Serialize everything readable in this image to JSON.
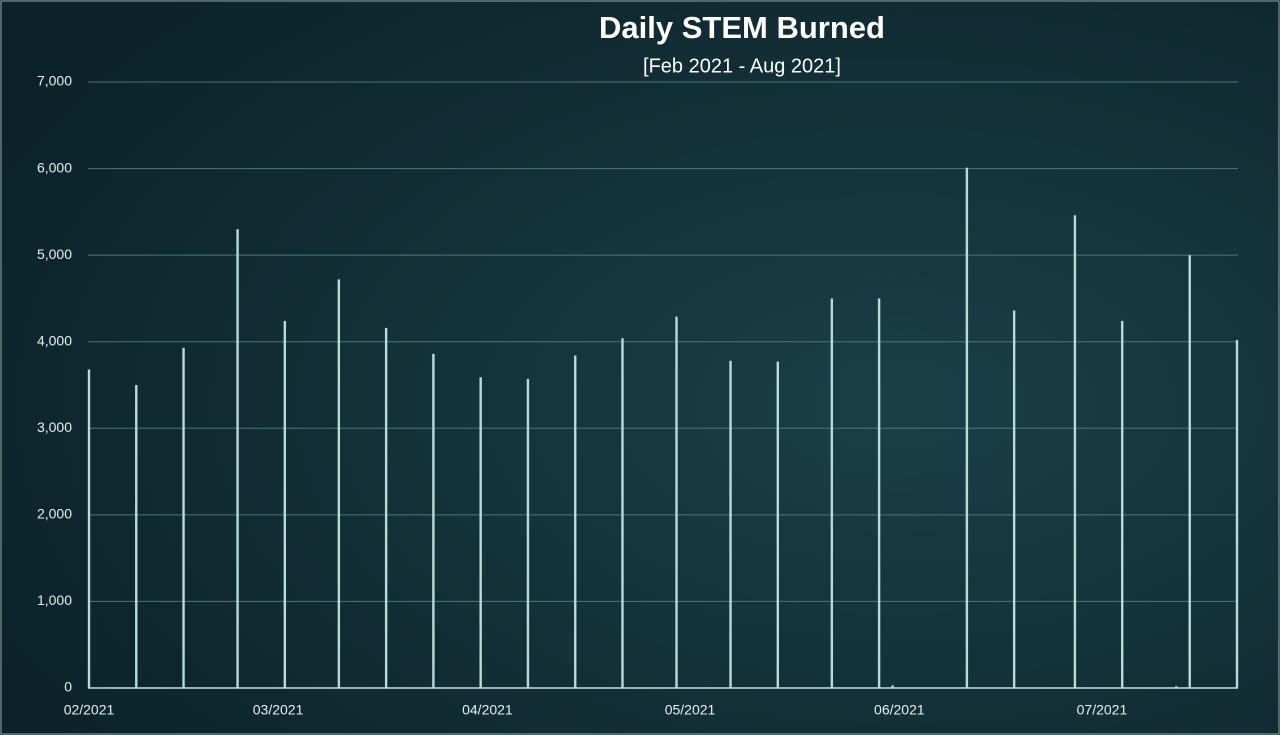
{
  "chart_data": {
    "type": "bar",
    "title": "Daily STEM Burned",
    "subtitle": "[Feb 2021 - Aug 2021]",
    "categories": [
      "02/2021",
      null,
      null,
      null,
      null,
      null,
      null,
      null,
      null,
      null,
      null,
      null,
      null,
      null,
      null,
      null,
      null,
      null,
      null,
      null,
      null,
      null,
      null,
      null,
      null,
      null,
      null,
      null,
      "03/2021",
      null,
      null,
      null,
      null,
      null,
      null,
      null,
      null,
      null,
      null,
      null,
      null,
      null,
      null,
      null,
      null,
      null,
      null,
      null,
      null,
      null,
      null,
      null,
      null,
      null,
      null,
      null,
      null,
      null,
      null,
      "04/2021",
      null,
      null,
      null,
      null,
      null,
      null,
      null,
      null,
      null,
      null,
      null,
      null,
      null,
      null,
      null,
      null,
      null,
      null,
      null,
      null,
      null,
      null,
      null,
      null,
      null,
      null,
      null,
      null,
      null,
      "05/2021",
      null,
      null,
      null,
      null,
      null,
      null,
      null,
      null,
      null,
      null,
      null,
      null,
      null,
      null,
      null,
      null,
      null,
      null,
      null,
      null,
      null,
      null,
      null,
      null,
      null,
      null,
      null,
      null,
      null,
      null,
      "06/2021",
      null,
      null,
      null,
      null,
      null,
      null,
      null,
      null,
      null,
      null,
      null,
      null,
      null,
      null,
      null,
      null,
      null,
      null,
      null,
      null,
      null,
      null,
      null,
      null,
      null,
      null,
      null,
      null,
      null,
      "07/2021",
      null,
      null,
      null,
      null,
      null,
      null,
      null,
      null,
      null,
      null,
      null,
      null,
      null,
      null,
      null,
      null,
      null,
      null,
      null,
      null
    ],
    "values": [
      3680,
      0,
      0,
      0,
      0,
      0,
      0,
      3500,
      0,
      0,
      0,
      0,
      0,
      0,
      3930,
      0,
      0,
      0,
      0,
      0,
      0,
      0,
      5300,
      0,
      0,
      0,
      0,
      0,
      0,
      4240,
      0,
      0,
      0,
      0,
      0,
      0,
      0,
      4720,
      0,
      0,
      0,
      0,
      0,
      0,
      4160,
      0,
      0,
      0,
      0,
      0,
      0,
      3860,
      0,
      0,
      0,
      0,
      0,
      0,
      3590,
      0,
      0,
      0,
      0,
      0,
      0,
      3570,
      0,
      0,
      0,
      0,
      0,
      0,
      3840,
      0,
      0,
      0,
      0,
      0,
      0,
      4040,
      0,
      0,
      0,
      0,
      0,
      0,
      0,
      4290,
      0,
      0,
      0,
      0,
      0,
      0,
      0,
      3780,
      0,
      0,
      0,
      0,
      0,
      0,
      3770,
      0,
      0,
      0,
      0,
      0,
      0,
      0,
      4500,
      0,
      0,
      0,
      0,
      0,
      0,
      4500,
      0,
      30,
      0,
      0,
      0,
      0,
      0,
      0,
      0,
      0,
      0,
      0,
      6010,
      0,
      0,
      0,
      0,
      0,
      0,
      4360,
      0,
      0,
      0,
      0,
      0,
      0,
      0,
      0,
      5460,
      0,
      0,
      0,
      0,
      0,
      0,
      4240,
      0,
      0,
      0,
      0,
      0,
      0,
      0,
      20,
      0,
      5000,
      0,
      0,
      0,
      0,
      0,
      0,
      4020
    ],
    "color": "#b9dada",
    "ylim": [
      0,
      7000
    ],
    "yticks": [
      0,
      {
        "value": 1000,
        "label": "1,000"
      },
      {
        "value": 2000,
        "label": "2,000"
      },
      {
        "value": 3000,
        "label": "3,000"
      },
      {
        "value": 4000,
        "label": "4,000"
      },
      {
        "value": 5000,
        "label": "5,000"
      },
      {
        "value": 6000,
        "label": "6,000"
      },
      {
        "value": 7000,
        "label": "7,000"
      }
    ],
    "grid": true
  }
}
